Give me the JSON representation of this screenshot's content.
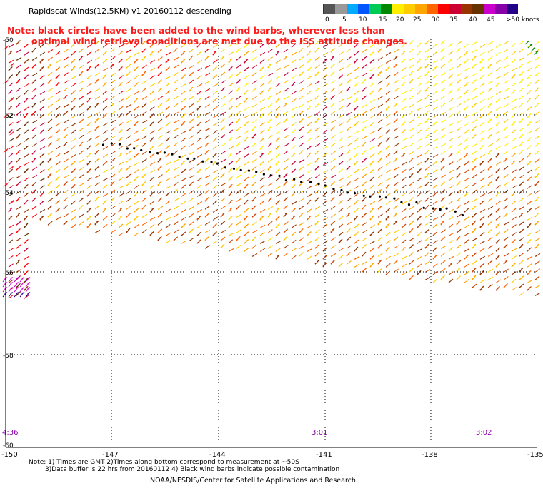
{
  "title": "Rapidscat Winds(12.5KM) v1 20160112 descending",
  "note_line1": "Note: black circles have been added to the wind barbs, wherever less than",
  "note_line2": "optimal wind retrieval conditions are met due to the ISS attitude changes.",
  "legend": {
    "colors": [
      "#555555",
      "#999999",
      "#00aaff",
      "#0055ff",
      "#00cc55",
      "#008800",
      "#ffee00",
      "#ffcc00",
      "#ffa500",
      "#ff6600",
      "#ff0000",
      "#cc0033",
      "#993300",
      "#663300",
      "#cc00cc",
      "#8800aa",
      "#220088"
    ],
    "labels": [
      "0",
      "5",
      "10",
      "15",
      "20",
      "25",
      "30",
      "35",
      "40",
      "45",
      ">50 knots"
    ]
  },
  "map": {
    "x_ticks": [
      "-150",
      "-147",
      "-144",
      "-141",
      "-138",
      "-135"
    ],
    "y_ticks": [
      "-50",
      "-52",
      "-54",
      "-56",
      "-58",
      "-60"
    ],
    "time_labels": [
      "4:36",
      "3:01",
      "3:02"
    ],
    "accent_colors": {
      "flag_icon": "#ff1a1a",
      "circle_marker": "#000000",
      "grid": "#000000"
    }
  },
  "footnote_line1": "Note: 1) Times are GMT 2)Times along bottom correspond to measurement at ~50S",
  "footnote_line2": "3)Data buffer is 22 hrs from 20160112 4) Black wind barbs indicate possible contamination",
  "credit": "NOAA/NESDIS/Center for Satellite Applications and Research"
}
